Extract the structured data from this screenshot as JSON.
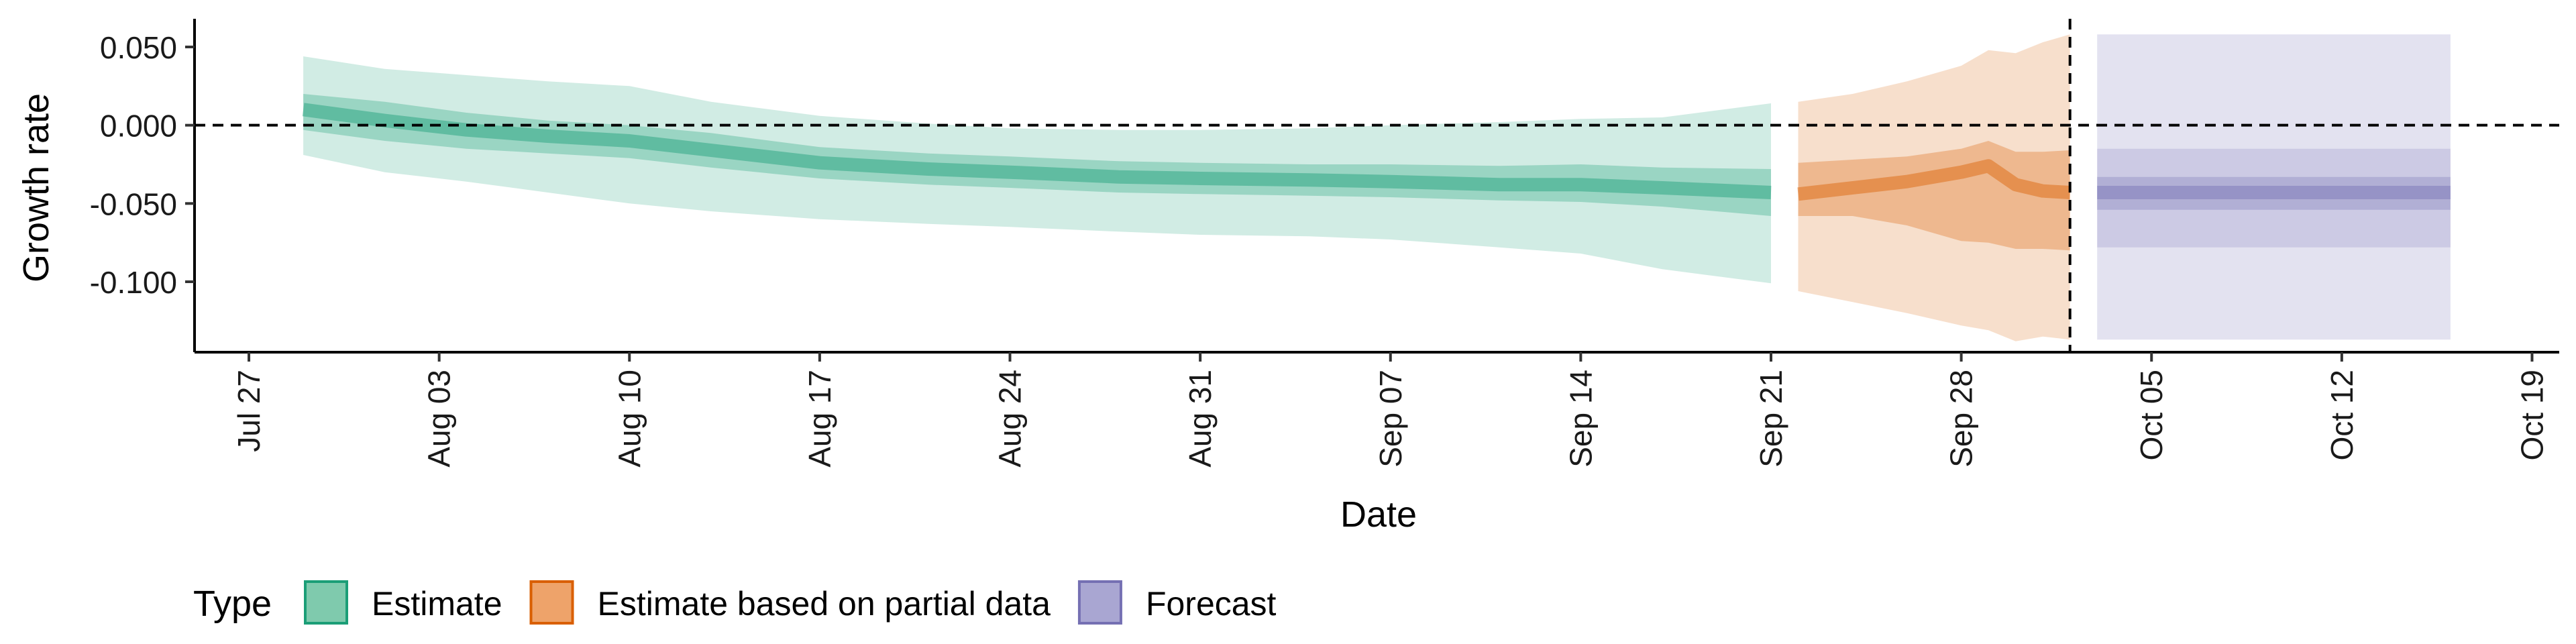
{
  "chart_data": {
    "type": "area",
    "xlabel": "Date",
    "ylabel": "Growth rate",
    "y_ticks": [
      0.05,
      0.0,
      -0.05,
      -0.1
    ],
    "y_tick_labels": [
      "0.050",
      "0.000",
      "-0.050",
      "-0.100"
    ],
    "x_ticks": [
      "2020-07-27",
      "2020-08-03",
      "2020-08-10",
      "2020-08-17",
      "2020-08-24",
      "2020-08-31",
      "2020-09-07",
      "2020-09-14",
      "2020-09-21",
      "2020-09-28",
      "2020-10-05",
      "2020-10-12",
      "2020-10-19"
    ],
    "x_tick_labels": [
      "Jul 27",
      "Aug 03",
      "Aug 10",
      "Aug 17",
      "Aug 24",
      "Aug 31",
      "Sep 07",
      "Sep 14",
      "Sep 21",
      "Sep 28",
      "Oct 05",
      "Oct 12",
      "Oct 19"
    ],
    "xlim": [
      "2020-07-25",
      "2020-10-20"
    ],
    "ylim": [
      -0.145,
      0.068
    ],
    "reference_lines": {
      "horizontal_y": 0.0,
      "vertical_date": "2020-10-02"
    },
    "legend": {
      "title": "Type",
      "position": "bottom-left",
      "entries": [
        {
          "label": "Estimate",
          "fill": "#7fcaad",
          "stroke": "#1b9e77"
        },
        {
          "label": "Estimate based on partial data",
          "fill": "#eea36a",
          "stroke": "#d95f02"
        },
        {
          "label": "Forecast",
          "fill": "#a9a6d2",
          "stroke": "#7570b3"
        }
      ]
    },
    "series": [
      {
        "name": "Estimate",
        "color": "#1b9e77",
        "points": [
          {
            "date": "2020-07-29",
            "median": 0.01,
            "lo50": -0.003,
            "hi50": 0.02,
            "lo90": -0.019,
            "hi90": 0.044
          },
          {
            "date": "2020-08-01",
            "median": 0.003,
            "lo50": -0.01,
            "hi50": 0.015,
            "lo90": -0.03,
            "hi90": 0.036
          },
          {
            "date": "2020-08-04",
            "median": -0.003,
            "lo50": -0.015,
            "hi50": 0.008,
            "lo90": -0.036,
            "hi90": 0.032
          },
          {
            "date": "2020-08-07",
            "median": -0.007,
            "lo50": -0.018,
            "hi50": 0.003,
            "lo90": -0.043,
            "hi90": 0.028
          },
          {
            "date": "2020-08-10",
            "median": -0.01,
            "lo50": -0.021,
            "hi50": 0.0,
            "lo90": -0.05,
            "hi90": 0.025
          },
          {
            "date": "2020-08-13",
            "median": -0.016,
            "lo50": -0.027,
            "hi50": -0.005,
            "lo90": -0.055,
            "hi90": 0.015
          },
          {
            "date": "2020-08-17",
            "median": -0.024,
            "lo50": -0.034,
            "hi50": -0.014,
            "lo90": -0.06,
            "hi90": 0.006
          },
          {
            "date": "2020-08-21",
            "median": -0.028,
            "lo50": -0.038,
            "hi50": -0.018,
            "lo90": -0.063,
            "hi90": 0.001
          },
          {
            "date": "2020-08-24",
            "median": -0.03,
            "lo50": -0.04,
            "hi50": -0.02,
            "lo90": -0.065,
            "hi90": -0.002
          },
          {
            "date": "2020-08-28",
            "median": -0.033,
            "lo50": -0.043,
            "hi50": -0.023,
            "lo90": -0.068,
            "hi90": -0.003
          },
          {
            "date": "2020-08-31",
            "median": -0.034,
            "lo50": -0.044,
            "hi50": -0.024,
            "lo90": -0.07,
            "hi90": -0.003
          },
          {
            "date": "2020-09-04",
            "median": -0.035,
            "lo50": -0.045,
            "hi50": -0.025,
            "lo90": -0.071,
            "hi90": -0.002
          },
          {
            "date": "2020-09-07",
            "median": -0.036,
            "lo50": -0.046,
            "hi50": -0.025,
            "lo90": -0.073,
            "hi90": 0.0
          },
          {
            "date": "2020-09-11",
            "median": -0.038,
            "lo50": -0.048,
            "hi50": -0.026,
            "lo90": -0.078,
            "hi90": 0.002
          },
          {
            "date": "2020-09-14",
            "median": -0.038,
            "lo50": -0.049,
            "hi50": -0.025,
            "lo90": -0.082,
            "hi90": 0.004
          },
          {
            "date": "2020-09-17",
            "median": -0.04,
            "lo50": -0.052,
            "hi50": -0.027,
            "lo90": -0.092,
            "hi90": 0.005
          },
          {
            "date": "2020-09-21",
            "median": -0.043,
            "lo50": -0.058,
            "hi50": -0.028,
            "lo90": -0.101,
            "hi90": 0.014
          }
        ]
      },
      {
        "name": "Estimate based on partial data",
        "color": "#d95f02",
        "points": [
          {
            "date": "2020-09-22",
            "median": -0.044,
            "lo50": -0.058,
            "hi50": -0.024,
            "lo90": -0.106,
            "hi90": 0.015
          },
          {
            "date": "2020-09-24",
            "median": -0.04,
            "lo50": -0.058,
            "hi50": -0.022,
            "lo90": -0.113,
            "hi90": 0.02
          },
          {
            "date": "2020-09-26",
            "median": -0.036,
            "lo50": -0.064,
            "hi50": -0.02,
            "lo90": -0.12,
            "hi90": 0.028
          },
          {
            "date": "2020-09-28",
            "median": -0.03,
            "lo50": -0.074,
            "hi50": -0.015,
            "lo90": -0.128,
            "hi90": 0.038
          },
          {
            "date": "2020-09-29",
            "median": -0.026,
            "lo50": -0.075,
            "hi50": -0.01,
            "lo90": -0.131,
            "hi90": 0.048
          },
          {
            "date": "2020-09-30",
            "median": -0.038,
            "lo50": -0.079,
            "hi50": -0.017,
            "lo90": -0.138,
            "hi90": 0.046
          },
          {
            "date": "2020-10-01",
            "median": -0.042,
            "lo50": -0.079,
            "hi50": -0.017,
            "lo90": -0.135,
            "hi90": 0.053
          },
          {
            "date": "2020-10-02",
            "median": -0.043,
            "lo50": -0.08,
            "hi50": -0.016,
            "lo90": -0.137,
            "hi90": 0.058
          }
        ]
      },
      {
        "name": "Forecast",
        "color": "#7570b3",
        "points": [
          {
            "date": "2020-10-03",
            "median": -0.043,
            "lo50": -0.054,
            "hi50": -0.033,
            "lo90": -0.078,
            "hi90": -0.015,
            "lo_outer": -0.137,
            "hi_outer": 0.058
          },
          {
            "date": "2020-10-16",
            "median": -0.043,
            "lo50": -0.054,
            "hi50": -0.033,
            "lo90": -0.078,
            "hi90": -0.015,
            "lo_outer": -0.137,
            "hi_outer": 0.058
          }
        ]
      }
    ]
  }
}
